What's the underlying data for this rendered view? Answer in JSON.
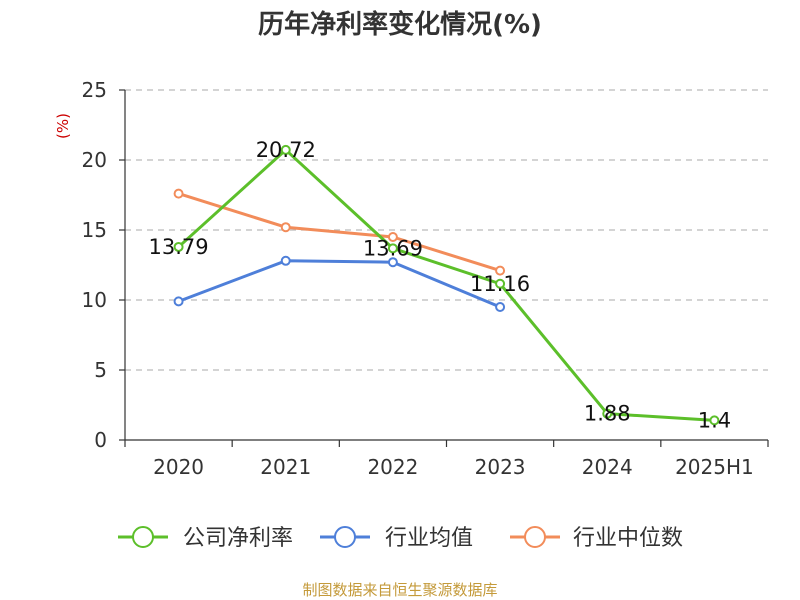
{
  "chart_data": {
    "type": "line",
    "title": "历年净利率变化情况(%)",
    "ylabel": "(%)",
    "categories": [
      "2020",
      "2021",
      "2022",
      "2023",
      "2024",
      "2025H1"
    ],
    "ylim": [
      0,
      25
    ],
    "yticks": [
      "0",
      "5",
      "10",
      "15",
      "20",
      "25"
    ],
    "grid": true,
    "legend_position": "bottom",
    "series": [
      {
        "name": "公司净利率",
        "color": "#5cbf2a",
        "values": [
          13.79,
          20.72,
          13.69,
          11.16,
          1.88,
          1.4
        ],
        "labels": [
          "13.79",
          "20.72",
          "13.69",
          "11.16",
          "1.88",
          "1.4"
        ]
      },
      {
        "name": "行业均值",
        "color": "#4e7fd9",
        "values": [
          9.9,
          12.8,
          12.7,
          9.5,
          null,
          null
        ]
      },
      {
        "name": "行业中位数",
        "color": "#f28c5a",
        "values": [
          17.6,
          15.2,
          14.5,
          12.1,
          null,
          null
        ]
      }
    ],
    "source": "制图数据来自恒生聚源数据库"
  }
}
